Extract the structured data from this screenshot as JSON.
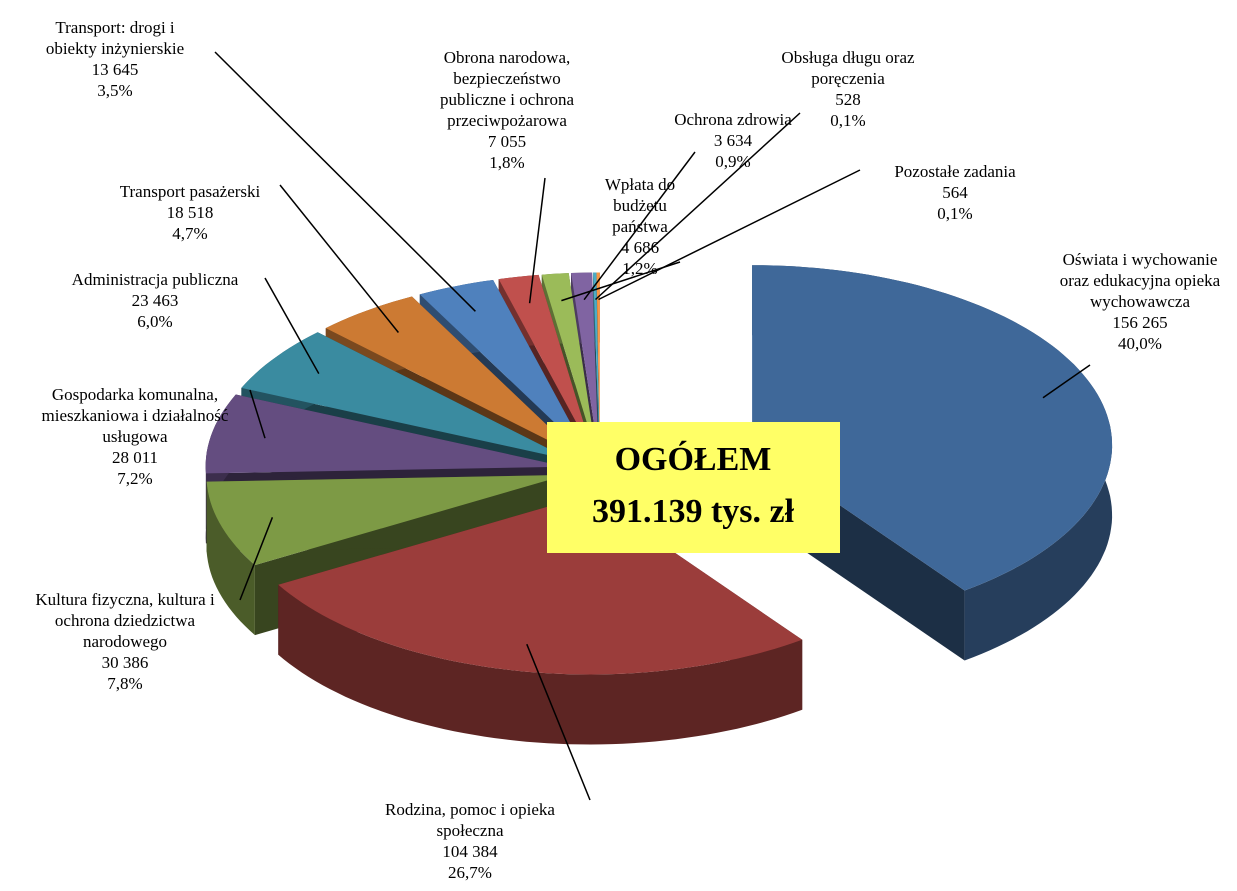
{
  "chart_data": {
    "type": "pie",
    "categories": [
      "Oświata i wychowanie\noraz edukacyjna opieka\nwychowawcza",
      "Rodzina, pomoc i opieka\nspołeczna",
      "Kultura fizyczna, kultura i\nochrona dziedzictwa\nnarodowego",
      "Gospodarka komunalna,\nmieszkaniowa i działalność\nusługowa",
      "Administracja publiczna",
      "Transport pasażerski",
      "Transport: drogi i\nobiekty inżynierskie",
      "Obrona narodowa,\nbezpieczeństwo\npubliczne i ochrona\nprzeciwpożarowa",
      "Wpłata do\nbudżetu\npaństwa",
      "Ochrona zdrowia",
      "Obsługa długu oraz\nporęczenia",
      "Pozostałe zadania"
    ],
    "values": [
      156265,
      104384,
      30386,
      28011,
      23463,
      18518,
      13645,
      7055,
      4686,
      3634,
      528,
      564
    ],
    "value_labels": [
      "156 265",
      "104 384",
      "30 386",
      "28 011",
      "23 463",
      "18 518",
      "13 645",
      "7 055",
      "4 686",
      "3 634",
      "528",
      "564"
    ],
    "percents": [
      40.0,
      26.7,
      7.8,
      7.2,
      6.0,
      4.7,
      3.5,
      1.8,
      1.2,
      0.9,
      0.1,
      0.1
    ],
    "percent_labels": [
      "40,0%",
      "26,7%",
      "7,8%",
      "7,2%",
      "6,0%",
      "4,7%",
      "3,5%",
      "1,8%",
      "1,2%",
      "0,9%",
      "0,1%",
      "0,1%"
    ],
    "colors": [
      "#3f6899",
      "#9b3d3b",
      "#7d9a45",
      "#644d80",
      "#3a8ba0",
      "#cc7a33",
      "#4f81bd",
      "#c0504d",
      "#9bbb59",
      "#8064a2",
      "#4bacc6",
      "#f79646"
    ],
    "center_label": [
      "OGÓŁEM",
      "391.139 tys. zł"
    ]
  }
}
